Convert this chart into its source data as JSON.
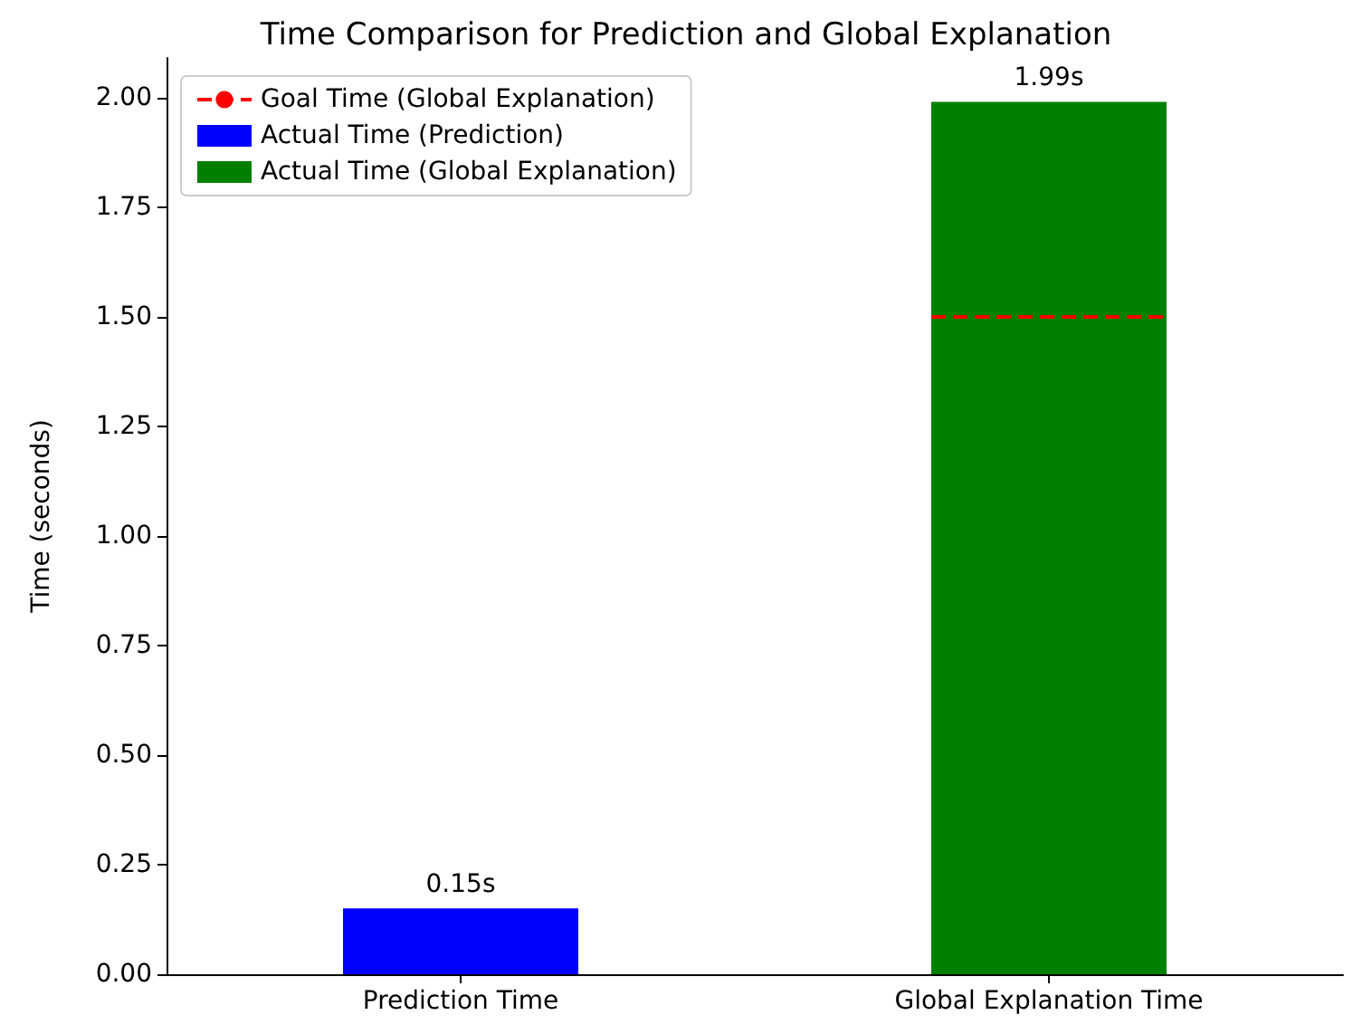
{
  "chart_data": {
    "type": "bar",
    "title": "Time Comparison for Prediction and Global Explanation",
    "ylabel": "Time (seconds)",
    "categories": [
      "Prediction Time",
      "Global Explanation Time"
    ],
    "series": [
      {
        "name": "Actual Time (Prediction)",
        "color": "#0000ff",
        "values": [
          0.15,
          null
        ],
        "value_labels": [
          "0.15s",
          null
        ]
      },
      {
        "name": "Actual Time (Global Explanation)",
        "color": "#008000",
        "values": [
          null,
          1.99
        ],
        "value_labels": [
          null,
          "1.99s"
        ]
      }
    ],
    "ref_lines": [
      {
        "axis": "y",
        "value": 1.5,
        "label": "Goal Time (Global Explanation)",
        "color": "#ff0000",
        "line_style": "dashed"
      }
    ],
    "ylim": [
      0,
      2.09
    ],
    "yticks": [
      {
        "value": 0,
        "label": "0.00"
      },
      0.25,
      {
        "value": 0.5,
        "label": "0.50"
      },
      0.75,
      {
        "value": 1,
        "label": "1.00"
      },
      1.25,
      {
        "value": 1.5,
        "label": "1.50"
      },
      1.75,
      {
        "value": 2,
        "label": "2.00"
      }
    ],
    "grid": false,
    "legend": "top left"
  }
}
